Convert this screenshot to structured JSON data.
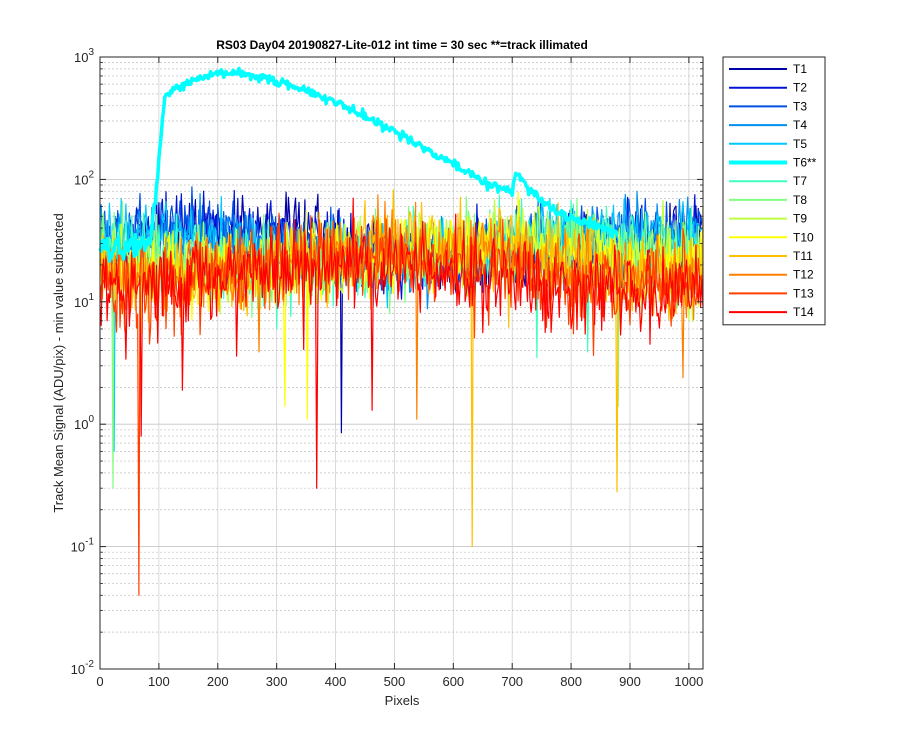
{
  "chart_data": {
    "type": "line",
    "title": "RS03 Day04 20190827-Lite-012 int time = 30 sec   **=track illimated",
    "xlabel": "Pixels",
    "ylabel": "Track Mean Signal (ADU/pix) - min value subtracted",
    "xlim": [
      0,
      1024
    ],
    "ylim": [
      0.01,
      1000
    ],
    "yscale": "log",
    "grid": true,
    "legend_position": "outside-right",
    "x_ticks": [
      0,
      100,
      200,
      300,
      400,
      500,
      600,
      700,
      800,
      900,
      1000
    ],
    "x_tick_labels": [
      "0",
      "100",
      "200",
      "300",
      "400",
      "500",
      "600",
      "700",
      "800",
      "900",
      "1000"
    ],
    "y_ticks": [
      {
        "value": 0.01,
        "mantissa": "10",
        "exp": "-2"
      },
      {
        "value": 0.1,
        "mantissa": "10",
        "exp": "-1"
      },
      {
        "value": 1,
        "mantissa": "10",
        "exp": "0"
      },
      {
        "value": 10,
        "mantissa": "10",
        "exp": "1"
      },
      {
        "value": 100,
        "mantissa": "10",
        "exp": "2"
      },
      {
        "value": 1000,
        "mantissa": "10",
        "exp": "3"
      }
    ],
    "series": [
      {
        "name": "T1",
        "color": "#0000aa",
        "base": 28,
        "noise": 0.26
      },
      {
        "name": "T2",
        "color": "#0014d8",
        "base": 30,
        "noise": 0.25
      },
      {
        "name": "T3",
        "color": "#0050e6",
        "base": 31,
        "noise": 0.24
      },
      {
        "name": "T4",
        "color": "#0090f0",
        "base": 30,
        "noise": 0.24
      },
      {
        "name": "T5",
        "color": "#00c8ff",
        "base": 29,
        "noise": 0.24
      },
      {
        "name": "T6**",
        "color": "#00ffff",
        "highlight": true,
        "x": [
          0,
          50,
          85,
          100,
          110,
          130,
          160,
          200,
          220,
          260,
          300,
          350,
          400,
          450,
          500,
          550,
          600,
          650,
          700,
          705,
          750,
          800,
          850,
          880
        ],
        "values": [
          28,
          28,
          30,
          150,
          480,
          560,
          650,
          720,
          730,
          700,
          640,
          540,
          430,
          330,
          250,
          180,
          135,
          95,
          78,
          115,
          65,
          48,
          40,
          36
        ]
      },
      {
        "name": "T7",
        "color": "#40ffbf",
        "base": 24,
        "noise": 0.28
      },
      {
        "name": "T8",
        "color": "#80ff80",
        "base": 24,
        "noise": 0.28
      },
      {
        "name": "T9",
        "color": "#bfff40",
        "base": 24,
        "noise": 0.28
      },
      {
        "name": "T10",
        "color": "#ffff00",
        "base": 22,
        "noise": 0.28
      },
      {
        "name": "T11",
        "color": "#ffc000",
        "base": 22,
        "noise": 0.3
      },
      {
        "name": "T12",
        "color": "#ff8000",
        "base": 20,
        "noise": 0.3
      },
      {
        "name": "T13",
        "color": "#ff4000",
        "base": 18,
        "noise": 0.32
      },
      {
        "name": "T14",
        "color": "#ff0000",
        "base": 16,
        "noise": 0.33
      }
    ],
    "dips": [
      {
        "series": "T13",
        "x": 67,
        "value": 0.04
      },
      {
        "series": "T14",
        "x": 70,
        "value": 0.8
      },
      {
        "series": "T8",
        "x": 22,
        "value": 0.3
      },
      {
        "series": "T5",
        "x": 24,
        "value": 0.6
      },
      {
        "series": "T14",
        "x": 140,
        "value": 1.9
      },
      {
        "series": "T14",
        "x": 232,
        "value": 3.6
      },
      {
        "series": "T12",
        "x": 270,
        "value": 3.9
      },
      {
        "series": "T10",
        "x": 315,
        "value": 1.4
      },
      {
        "series": "T10",
        "x": 352,
        "value": 1.1
      },
      {
        "series": "T14",
        "x": 369,
        "value": 0.3
      },
      {
        "series": "T1",
        "x": 411,
        "value": 0.85
      },
      {
        "series": "T14",
        "x": 462,
        "value": 1.3
      },
      {
        "series": "T12",
        "x": 538,
        "value": 1.1
      },
      {
        "series": "T11",
        "x": 632,
        "value": 0.1
      },
      {
        "series": "T7",
        "x": 742,
        "value": 3.5
      },
      {
        "series": "T7",
        "x": 828,
        "value": 3.9
      },
      {
        "series": "T11",
        "x": 878,
        "value": 0.28
      },
      {
        "series": "T8",
        "x": 880,
        "value": 1.4
      },
      {
        "series": "T14",
        "x": 935,
        "value": 4.5
      },
      {
        "series": "T12",
        "x": 990,
        "value": 2.4
      }
    ],
    "spikes": [
      {
        "series": "T14",
        "x": 605,
        "value": 52
      }
    ]
  }
}
